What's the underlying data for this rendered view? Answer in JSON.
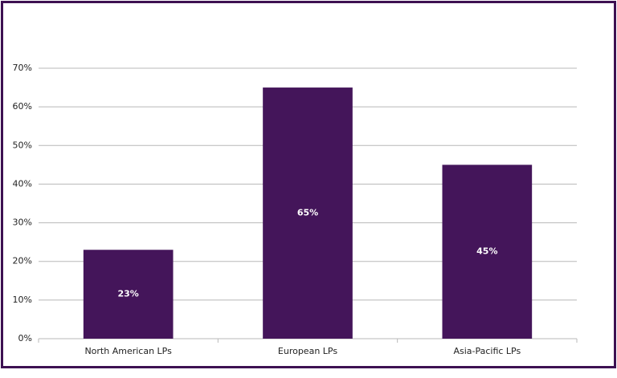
{
  "chart_data": {
    "type": "bar",
    "categories": [
      "North American LPs",
      "European LPs",
      "Asia-Pacific LPs"
    ],
    "values": [
      23,
      65,
      45
    ],
    "value_labels": [
      "23%",
      "65%",
      "45%"
    ],
    "color": "#44155a",
    "ylim": [
      0,
      70
    ],
    "yticks": [
      {
        "value": 0,
        "label": "0%"
      },
      {
        "value": 10,
        "label": "10%"
      },
      {
        "value": 20,
        "label": "20%"
      },
      {
        "value": 30,
        "label": "30%"
      },
      {
        "value": 40,
        "label": "40%"
      },
      {
        "value": 50,
        "label": "50%"
      },
      {
        "value": 60,
        "label": "60%"
      },
      {
        "value": 70,
        "label": "70%"
      }
    ],
    "grid": true
  }
}
